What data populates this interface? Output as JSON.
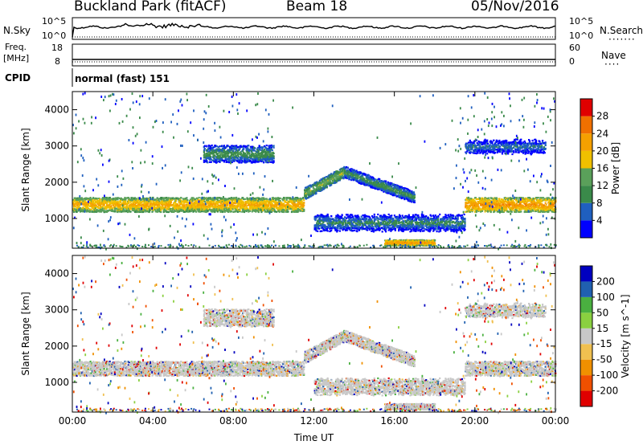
{
  "header": {
    "station": "Buckland Park (fitACF)",
    "beam": "Beam 18",
    "date": "05/Nov/2016"
  },
  "noise_panel": {
    "left_label": "N.Sky",
    "right_label": "N.Search",
    "left_ticks": [
      "10^5",
      "10^0"
    ],
    "right_ticks": [
      "10^5",
      "10^0"
    ]
  },
  "freq_panel": {
    "left_label_line1": "Freq.",
    "left_label_line2": "[MHz]",
    "right_label": "Nave",
    "left_ticks": [
      "18",
      "8"
    ],
    "right_ticks": [
      "60",
      "0"
    ]
  },
  "cpid": {
    "label": "CPID",
    "value": "normal (fast) 151"
  },
  "colors": {
    "power": [
      "#0000ff",
      "#1f5fbf",
      "#3a8a4a",
      "#5aa05a",
      "#f0c000",
      "#f5a000",
      "#f07000",
      "#e00000"
    ],
    "velocity": [
      "#e00000",
      "#f05000",
      "#f09000",
      "#f0c050",
      "#c8c8c8",
      "#8ad040",
      "#4ab040",
      "#2060b0",
      "#0000c0"
    ]
  },
  "chart_data": [
    {
      "type": "heatmap",
      "name": "power",
      "ylabel": "Slant Range [km]",
      "xlabel": "Time UT",
      "xlim": [
        "00:00",
        "24:00"
      ],
      "ylim": [
        180,
        4500
      ],
      "yticks": [
        1000,
        2000,
        3000,
        4000
      ],
      "xticks": [
        "00:00",
        "04:00",
        "08:00",
        "12:00",
        "16:00",
        "20:00",
        "00:00"
      ],
      "colorbar": {
        "label": "Power [dB]",
        "ticks": [
          4,
          8,
          12,
          16,
          20,
          24,
          28
        ],
        "range": [
          0,
          32
        ]
      },
      "features": [
        {
          "t_start": 0.0,
          "t_end": 11.5,
          "range_km": 1400,
          "width_km": 250,
          "power_db": 22
        },
        {
          "t_start": 11.5,
          "t_end": 13.5,
          "range_km": 2200,
          "width_km": 200,
          "power_db": 16
        },
        {
          "t_start": 13.5,
          "t_end": 17.0,
          "range_km": 1700,
          "width_km": 200,
          "power_db": 12
        },
        {
          "t_start": 12.0,
          "t_end": 19.5,
          "range_km": 900,
          "width_km": 300,
          "power_db": 10
        },
        {
          "t_start": 15.5,
          "t_end": 18.0,
          "range_km": 350,
          "width_km": 100,
          "power_db": 24
        },
        {
          "t_start": 19.5,
          "t_end": 24.0,
          "range_km": 1400,
          "width_km": 250,
          "power_db": 24
        },
        {
          "t_start": 6.5,
          "t_end": 10.0,
          "range_km": 2800,
          "width_km": 300,
          "power_db": 12
        },
        {
          "t_start": 19.5,
          "t_end": 23.5,
          "range_km": 3000,
          "width_km": 300,
          "power_db": 8
        }
      ]
    },
    {
      "type": "heatmap",
      "name": "velocity",
      "ylabel": "Slant Range [km]",
      "xlabel": "Time UT",
      "xlim": [
        "00:00",
        "24:00"
      ],
      "ylim": [
        180,
        4500
      ],
      "yticks": [
        1000,
        2000,
        3000,
        4000
      ],
      "xticks": [
        "00:00",
        "04:00",
        "08:00",
        "12:00",
        "16:00",
        "20:00",
        "00:00"
      ],
      "colorbar": {
        "label": "Velocity [m s^-1]",
        "ticks": [
          -200,
          -100,
          -50,
          -15,
          15,
          50,
          100,
          200
        ]
      }
    }
  ]
}
